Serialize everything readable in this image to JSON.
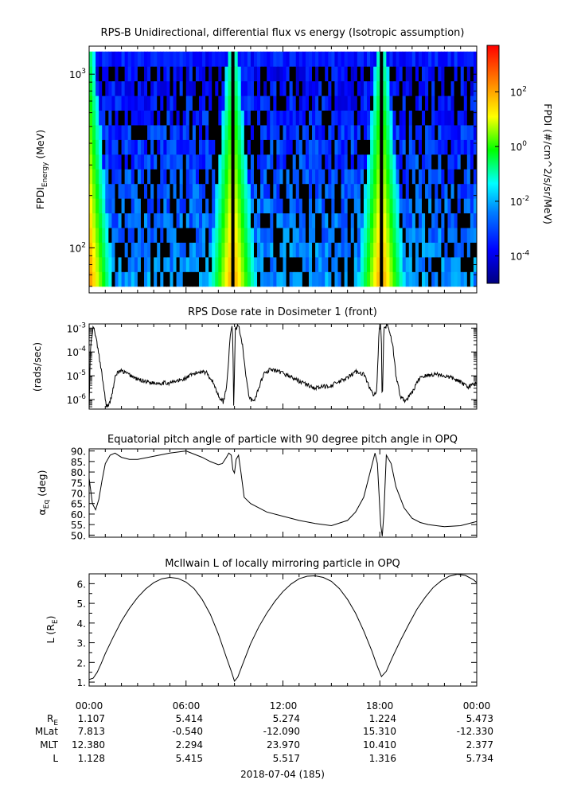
{
  "chart_data": [
    {
      "type": "heatmap",
      "title": "RPS-B  Unidirectional, differential flux vs energy (Isotropic assumption)",
      "ylabel": {
        "main": "FPDI",
        "sub": "Energy",
        "suffix": " (MeV)"
      },
      "yscale": "log",
      "ylim": [
        55,
        1450
      ],
      "y_ticks": [
        {
          "base": "10",
          "exp": "3",
          "value": 1000
        },
        {
          "base": "10",
          "exp": "2",
          "value": 100
        }
      ],
      "energy_channels_mev": [
        60,
        1350
      ],
      "xlim_hours": [
        0,
        24
      ],
      "gaps_hours": [
        8.9,
        18.1
      ],
      "colorbar": {
        "label": "FPDI (#/cm^2/s/sr/MeV)",
        "scale": "log",
        "range": [
          1e-05,
          5000
        ],
        "colors": [
          "#00007f",
          "#0000ff",
          "#007fff",
          "#00ffff",
          "#00ff00",
          "#ffff00",
          "#ff7f00",
          "#ff0000"
        ],
        "ticks": [
          {
            "base": "10",
            "exp": "2",
            "value": 100
          },
          {
            "base": "10",
            "exp": "0",
            "value": 1
          },
          {
            "base": "10",
            "exp": "-2",
            "value": 0.01
          },
          {
            "base": "10",
            "exp": "-4",
            "value": 0.0001
          }
        ]
      }
    },
    {
      "type": "line",
      "title": "RPS  Dose rate in Dosimeter 1 (front)",
      "ylabel": "(rads/sec)",
      "yscale": "log",
      "ylim": [
        4e-07,
        0.0015
      ],
      "y_ticks": [
        {
          "base": "10",
          "exp": "-3",
          "value": 0.001
        },
        {
          "base": "10",
          "exp": "-4",
          "value": 0.0001
        },
        {
          "base": "10",
          "exp": "-5",
          "value": 1e-05
        },
        {
          "base": "10",
          "exp": "-6",
          "value": 1e-06
        }
      ],
      "x": [
        0,
        0.08,
        0.25,
        0.4,
        0.6,
        0.85,
        1.05,
        1.2,
        1.4,
        1.6,
        1.75,
        2.0,
        2.5,
        3.0,
        4.0,
        5.0,
        5.8,
        6.5,
        7.0,
        7.3,
        7.7,
        8.0,
        8.3,
        8.5,
        8.75,
        8.85,
        8.9,
        8.95,
        9.05,
        9.25,
        9.5,
        9.7,
        9.9,
        10.2,
        10.5,
        10.8,
        11.2,
        12.0,
        13.0,
        14.0,
        15.0,
        16.0,
        16.5,
        17.0,
        17.3,
        17.6,
        17.8,
        17.95,
        18.05,
        18.1,
        18.15,
        18.25,
        18.5,
        18.8,
        19.0,
        19.3,
        19.6,
        20.0,
        20.5,
        21.5,
        22.5,
        23.5,
        24.0
      ],
      "y": [
        4e-07,
        0.00015,
        0.0011,
        0.0005,
        8e-05,
        6e-06,
        6e-07,
        5e-07,
        1.5e-06,
        8e-06,
        1.4e-05,
        1.6e-05,
        1.1e-05,
        7e-06,
        5e-06,
        5e-06,
        7e-06,
        1.2e-05,
        1.6e-05,
        1.3e-05,
        5e-06,
        1.5e-06,
        8e-07,
        3e-06,
        0.0005,
        0.0015,
        0.0003,
        4e-07,
        0.0008,
        0.0014,
        0.0002,
        1e-05,
        1.2e-06,
        8e-07,
        3e-06,
        1.2e-05,
        1.8e-05,
        1.3e-05,
        6e-06,
        3e-06,
        4e-06,
        8e-06,
        1.5e-05,
        1.2e-05,
        4e-06,
        1.5e-06,
        2e-06,
        0.0007,
        0.0015,
        0.0003,
        4e-07,
        0.0009,
        0.0014,
        0.0002,
        1e-05,
        1.2e-06,
        9e-07,
        2e-06,
        9e-06,
        1.2e-05,
        8e-06,
        3.5e-06,
        5e-06
      ]
    },
    {
      "type": "line",
      "title": "Equatorial pitch angle of particle with 90 degree pitch angle in OPQ",
      "ylabel": {
        "main": "α",
        "sub": "Eq",
        "suffix": " (deg)"
      },
      "ylim": [
        49,
        91
      ],
      "y_ticks": [
        "90.",
        "85.",
        "80.",
        "75.",
        "70.",
        "65.",
        "60.",
        "55.",
        "50."
      ],
      "x": [
        0,
        0.2,
        0.4,
        0.6,
        0.8,
        1.0,
        1.3,
        1.6,
        2.0,
        2.5,
        3.0,
        4.0,
        5.0,
        6.0,
        6.5,
        7.0,
        7.5,
        8.0,
        8.25,
        8.5,
        8.65,
        8.8,
        8.9,
        9.0,
        9.1,
        9.25,
        9.4,
        9.6,
        10.0,
        11.0,
        12.0,
        13.0,
        14.0,
        15.0,
        16.0,
        16.5,
        17.0,
        17.4,
        17.7,
        17.85,
        17.95,
        18.05,
        18.15,
        18.25,
        18.4,
        18.7,
        19.0,
        19.5,
        20.0,
        20.5,
        21.0,
        21.5,
        22.0,
        23.0,
        24.0
      ],
      "y": [
        77,
        65,
        62,
        67,
        76,
        84,
        88,
        89,
        87,
        86,
        86,
        87.5,
        89,
        90,
        88.5,
        87,
        85,
        83.5,
        84,
        87,
        89,
        88,
        81,
        79.5,
        86,
        88,
        80,
        68,
        65,
        61,
        59,
        57,
        55.5,
        54.5,
        57,
        61,
        68,
        80,
        89,
        84,
        70,
        55,
        49.5,
        60,
        88,
        84,
        73,
        63,
        58,
        56,
        55,
        54.5,
        54,
        54.5,
        56.5
      ]
    },
    {
      "type": "line",
      "title": "McIlwain L of locally mirroring particle in OPQ",
      "ylabel": {
        "main": "L (R",
        "sub": "E",
        "suffix": ")"
      },
      "ylim": [
        0.8,
        6.5
      ],
      "y_ticks": [
        "6.",
        "5.",
        "4.",
        "3.",
        "2.",
        "1."
      ],
      "x": [
        0,
        0.25,
        0.5,
        0.75,
        1,
        1.5,
        2,
        2.5,
        3,
        3.5,
        4,
        4.5,
        5,
        5.5,
        6,
        6.5,
        7,
        7.5,
        8,
        8.5,
        8.8,
        9,
        9.2,
        9.5,
        10,
        10.5,
        11,
        11.5,
        12,
        12.5,
        13,
        13.5,
        14,
        14.5,
        15,
        15.5,
        16,
        16.5,
        17,
        17.5,
        17.8,
        18.1,
        18.4,
        18.8,
        19.3,
        19.8,
        20.3,
        20.8,
        21.3,
        21.8,
        22.3,
        22.8,
        23.3,
        23.8,
        24
      ],
      "y": [
        1.13,
        1.2,
        1.5,
        1.95,
        2.45,
        3.3,
        4.1,
        4.75,
        5.3,
        5.73,
        6.05,
        6.25,
        6.32,
        6.27,
        6.08,
        5.75,
        5.2,
        4.45,
        3.45,
        2.25,
        1.55,
        1.05,
        1.25,
        1.9,
        2.95,
        3.8,
        4.5,
        5.1,
        5.6,
        5.98,
        6.25,
        6.38,
        6.4,
        6.32,
        6.12,
        5.75,
        5.2,
        4.5,
        3.6,
        2.6,
        1.9,
        1.28,
        1.55,
        2.3,
        3.15,
        3.95,
        4.7,
        5.3,
        5.8,
        6.15,
        6.38,
        6.48,
        6.42,
        6.2,
        6.05
      ]
    }
  ],
  "x_tick_labels": [
    "00:00",
    "06:00",
    "12:00",
    "18:00",
    "00:00"
  ],
  "ephemeris": {
    "rows": [
      {
        "label": "R",
        "sub": "E",
        "values": [
          "1.107",
          "5.414",
          "5.274",
          "1.224",
          "5.473"
        ]
      },
      {
        "label": "MLat",
        "sub": "",
        "values": [
          "7.813",
          "-0.540",
          "-12.090",
          "15.310",
          "-12.330"
        ]
      },
      {
        "label": "MLT",
        "sub": "",
        "values": [
          "12.380",
          "2.294",
          "23.970",
          "10.410",
          "2.377"
        ]
      },
      {
        "label": "L",
        "sub": "",
        "values": [
          "1.128",
          "5.415",
          "5.517",
          "1.316",
          "5.734"
        ]
      }
    ]
  },
  "date_label": "2018-07-04 (185)"
}
